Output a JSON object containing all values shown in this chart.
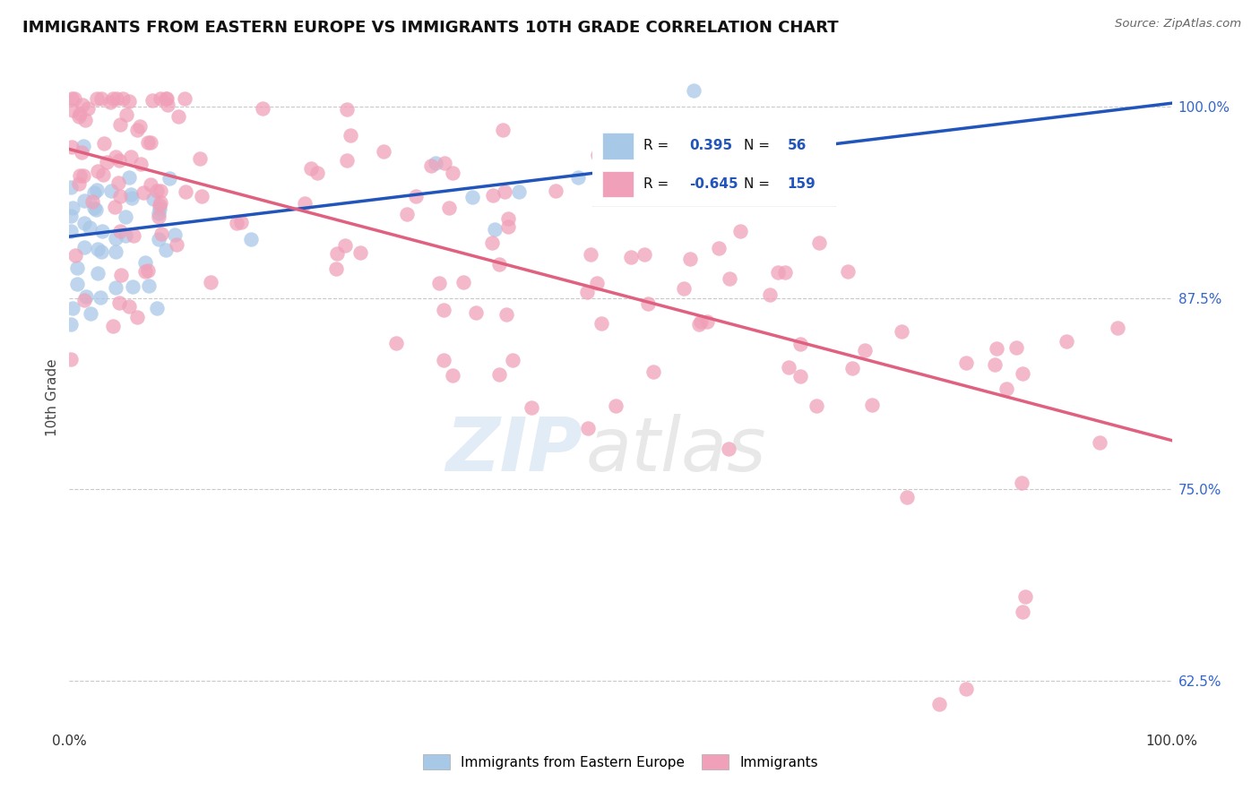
{
  "title": "IMMIGRANTS FROM EASTERN EUROPE VS IMMIGRANTS 10TH GRADE CORRELATION CHART",
  "source": "Source: ZipAtlas.com",
  "ylabel": "10th Grade",
  "xlim": [
    0.0,
    1.0
  ],
  "ylim": [
    0.595,
    1.025
  ],
  "x_ticks": [
    0.0,
    0.25,
    0.5,
    0.75,
    1.0
  ],
  "x_tick_labels": [
    "0.0%",
    "",
    "",
    "",
    "100.0%"
  ],
  "y_tick_labels_right": [
    "62.5%",
    "75.0%",
    "87.5%",
    "100.0%"
  ],
  "y_ticks_right": [
    0.625,
    0.75,
    0.875,
    1.0
  ],
  "blue_color": "#A8C8E8",
  "pink_color": "#F0A0B8",
  "blue_line_color": "#2255BB",
  "pink_line_color": "#E06080",
  "legend_R1": "0.395",
  "legend_N1": "56",
  "legend_R2": "-0.645",
  "legend_N2": "159",
  "blue_trend_x0": 0.0,
  "blue_trend_y0": 0.915,
  "blue_trend_x1": 1.0,
  "blue_trend_y1": 1.002,
  "pink_trend_x0": 0.0,
  "pink_trend_y0": 0.972,
  "pink_trend_x1": 1.0,
  "pink_trend_y1": 0.782
}
